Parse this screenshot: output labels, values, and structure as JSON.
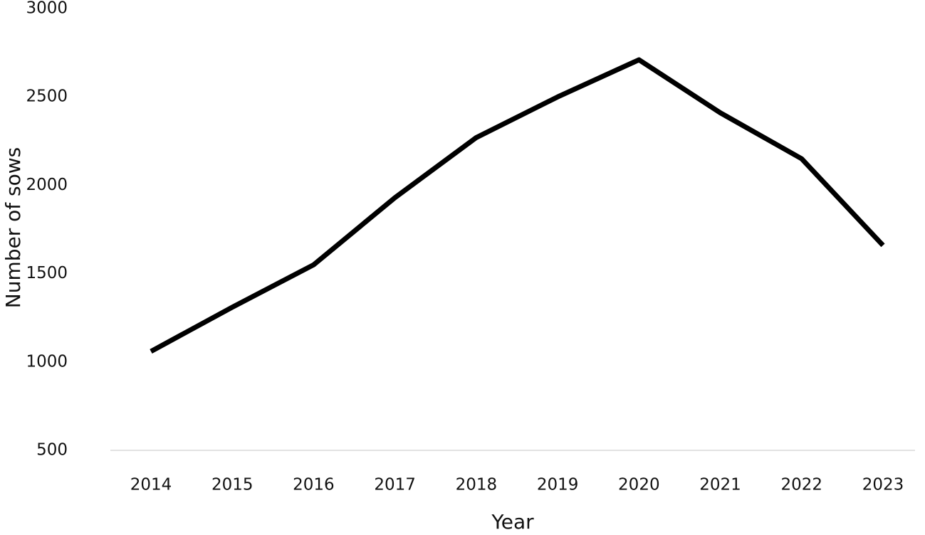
{
  "chart_data": {
    "type": "line",
    "x_label": "Year",
    "y_label": "Number of sows",
    "categories": [
      "2014",
      "2015",
      "2016",
      "2017",
      "2018",
      "2019",
      "2020",
      "2021",
      "2022",
      "2023"
    ],
    "series": [
      {
        "color": "#000000",
        "values": [
          1060,
          1310,
          1550,
          1930,
          2270,
          2500,
          2710,
          2410,
          2150,
          1660
        ]
      }
    ],
    "ylim": [
      500,
      3000
    ],
    "yticks": [
      500,
      1000,
      1500,
      2000,
      2500,
      3000
    ],
    "grid": false
  }
}
